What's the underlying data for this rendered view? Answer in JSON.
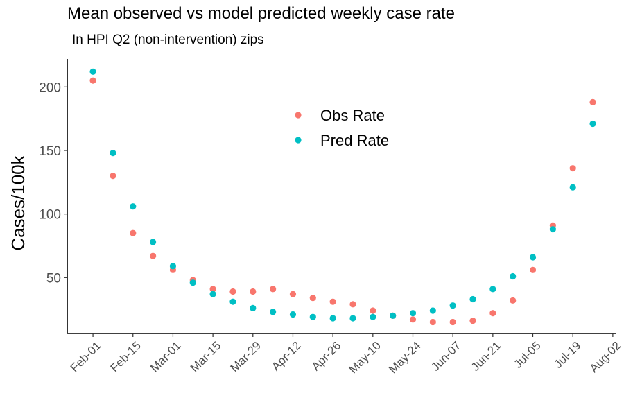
{
  "chart_data": {
    "type": "scatter",
    "title": "Mean observed vs model predicted weekly case rate",
    "subtitle": "In HPI Q2 (non-intervention) zips",
    "xlabel": "",
    "ylabel": "Cases/100k",
    "x_ticks": [
      {
        "label": "Feb-01",
        "date": "2021-02-01"
      },
      {
        "label": "Feb-15",
        "date": "2021-02-15"
      },
      {
        "label": "Mar-01",
        "date": "2021-03-01"
      },
      {
        "label": "Mar-15",
        "date": "2021-03-15"
      },
      {
        "label": "Mar-29",
        "date": "2021-03-29"
      },
      {
        "label": "Apr-12",
        "date": "2021-04-12"
      },
      {
        "label": "Apr-26",
        "date": "2021-04-26"
      },
      {
        "label": "May-10",
        "date": "2021-05-10"
      },
      {
        "label": "May-24",
        "date": "2021-05-24"
      },
      {
        "label": "Jun-07",
        "date": "2021-06-07"
      },
      {
        "label": "Jun-21",
        "date": "2021-06-21"
      },
      {
        "label": "Jul-05",
        "date": "2021-07-05"
      },
      {
        "label": "Jul-19",
        "date": "2021-07-19"
      },
      {
        "label": "Aug-02",
        "date": "2021-08-02"
      }
    ],
    "y_ticks": [
      50,
      100,
      150,
      200
    ],
    "xlim": [
      "2021-01-23",
      "2021-08-03"
    ],
    "ylim": [
      6,
      222
    ],
    "grid": false,
    "legend_position": "top-center",
    "x": [
      "2021-02-01",
      "2021-02-08",
      "2021-02-15",
      "2021-02-22",
      "2021-03-01",
      "2021-03-08",
      "2021-03-15",
      "2021-03-22",
      "2021-03-29",
      "2021-04-05",
      "2021-04-12",
      "2021-04-19",
      "2021-04-26",
      "2021-05-03",
      "2021-05-10",
      "2021-05-17",
      "2021-05-24",
      "2021-05-31",
      "2021-06-07",
      "2021-06-14",
      "2021-06-21",
      "2021-06-28",
      "2021-07-05",
      "2021-07-12",
      "2021-07-19",
      "2021-07-26"
    ],
    "series": [
      {
        "name": "Obs Rate",
        "color": "#F8766D",
        "values": [
          205,
          130,
          85,
          67,
          56,
          48,
          41,
          39,
          39,
          41,
          37,
          34,
          31,
          29,
          24,
          20,
          17,
          15,
          15,
          16,
          22,
          32,
          56,
          91,
          136,
          188
        ]
      },
      {
        "name": "Pred Rate",
        "color": "#00BFC4",
        "values": [
          212,
          148,
          106,
          78,
          59,
          46,
          37,
          31,
          26,
          23,
          21,
          19,
          18,
          18,
          19,
          20,
          22,
          24,
          28,
          33,
          41,
          51,
          66,
          88,
          121,
          171
        ]
      }
    ]
  }
}
